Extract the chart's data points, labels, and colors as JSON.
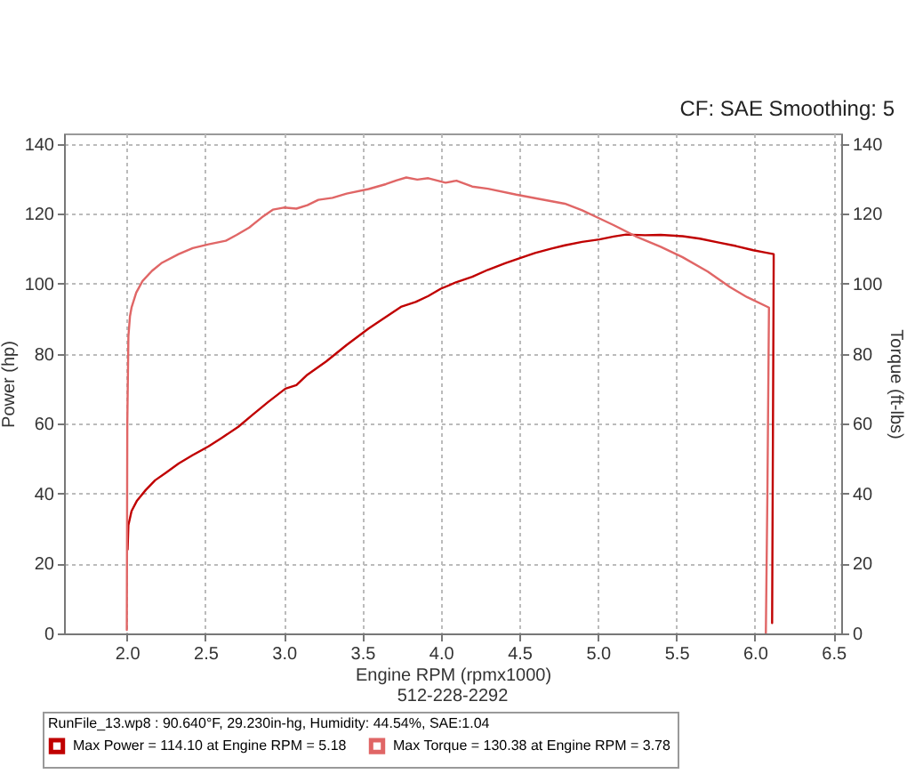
{
  "chart_data": {
    "type": "line",
    "title": "CF: SAE Smoothing: 5",
    "xlabel": "Engine RPM (rpmx1000)",
    "ylabel": "Power (hp)",
    "y2label": "Torque (ft-lbs)",
    "legend_title": "RunFile_13.wp8 : 90.640°F, 29.230in-hg, Humidity: 44.54%, SAE:1.04",
    "annotations": [
      "512-228-2292"
    ],
    "xlim": [
      1.6,
      6.55
    ],
    "xticks": [
      {
        "value": 2,
        "label": "2.0"
      },
      {
        "value": 2.5,
        "label": "2.5"
      },
      {
        "value": 3,
        "label": "3.0"
      },
      {
        "value": 3.5,
        "label": "3.5"
      },
      {
        "value": 4,
        "label": "4.0"
      },
      {
        "value": 4.5,
        "label": "4.5"
      },
      {
        "value": 5,
        "label": "5.0"
      },
      {
        "value": 5.5,
        "label": "5.5"
      },
      {
        "value": 6,
        "label": "6.0"
      },
      {
        "value": 6.5,
        "label": "6.5"
      }
    ],
    "ylim": [
      0,
      143
    ],
    "yticks": [
      0,
      20,
      40,
      60,
      80,
      100,
      120,
      140
    ],
    "y2lim": [
      0,
      143
    ],
    "y2ticks": [
      0,
      20,
      40,
      60,
      80,
      100,
      120,
      140
    ],
    "grid": true,
    "legend": "bottom",
    "series": [
      {
        "name": "Max Power = 114.10 at Engine RPM = 5.18",
        "color": "#c00000",
        "x": [
          2.005,
          2.01,
          2.03,
          2.065,
          2.12,
          2.18,
          2.25,
          2.33,
          2.42,
          2.52,
          2.6,
          2.71,
          2.8,
          2.9,
          3.01,
          3.08,
          3.15,
          3.27,
          3.4,
          3.54,
          3.65,
          3.75,
          3.84,
          3.92,
          4.0,
          4.05,
          4.1,
          4.2,
          4.3,
          4.41,
          4.5,
          4.6,
          4.7,
          4.79,
          4.9,
          5.01,
          5.1,
          5.18,
          5.3,
          5.4,
          5.54,
          5.65,
          5.77,
          5.88,
          5.99,
          6.06,
          6.12,
          6.12,
          6.11
        ],
        "values": [
          24,
          31,
          35,
          38,
          41,
          43.8,
          46,
          48.6,
          51,
          53.5,
          55.8,
          59.1,
          62.5,
          66.2,
          70,
          71,
          74,
          77.8,
          82.5,
          87.2,
          90.5,
          93.5,
          94.8,
          96.5,
          98.6,
          99.5,
          100.5,
          102,
          104,
          105.9,
          107.3,
          108.8,
          110,
          111,
          112,
          112.7,
          113.5,
          114.1,
          113.9,
          114,
          113.6,
          112.9,
          111.8,
          110.8,
          109.6,
          109,
          108.5,
          106,
          3
        ]
      },
      {
        "name": "Max Torque = 130.38 at Engine RPM = 3.78",
        "color": "#e06666",
        "axis": "y2",
        "x": [
          2.0,
          2.003,
          2.01,
          2.02,
          2.03,
          2.06,
          2.1,
          2.16,
          2.22,
          2.33,
          2.42,
          2.52,
          2.63,
          2.7,
          2.78,
          2.86,
          2.93,
          3.0,
          3.08,
          3.15,
          3.22,
          3.31,
          3.4,
          3.54,
          3.65,
          3.72,
          3.78,
          3.85,
          3.92,
          4.03,
          4.1,
          4.2,
          4.3,
          4.48,
          4.6,
          4.79,
          4.9,
          5.01,
          5.1,
          5.24,
          5.4,
          5.54,
          5.7,
          5.84,
          5.95,
          6.09,
          6.08,
          6.07
        ],
        "values": [
          1,
          60,
          85,
          90.7,
          93.2,
          97.5,
          100.8,
          103.7,
          105.9,
          108.5,
          110.2,
          111.3,
          112.3,
          114,
          116.1,
          119,
          121.2,
          121.8,
          121.5,
          122.5,
          124,
          124.6,
          125.8,
          127.1,
          128.5,
          129.6,
          130.4,
          129.8,
          130.2,
          128.9,
          129.5,
          127.8,
          127.2,
          125.5,
          124.5,
          122.9,
          121,
          118.7,
          116.8,
          113.6,
          110.6,
          107.6,
          103.5,
          99.1,
          96.2,
          93.2,
          40,
          0
        ]
      }
    ]
  }
}
